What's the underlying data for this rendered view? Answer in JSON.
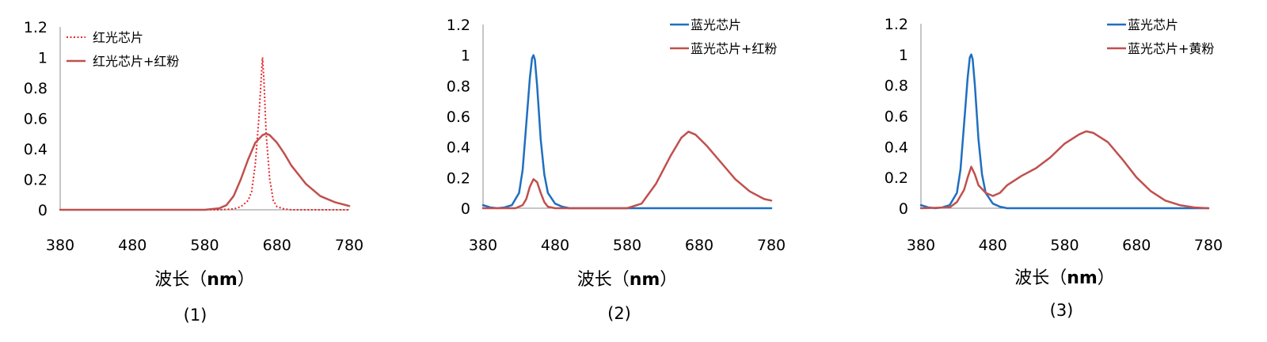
{
  "chart_data": [
    {
      "type": "line",
      "panel_label": "(1)",
      "xlabel_main": "波长（",
      "xlabel_unit": "nm",
      "xlabel_end": "）",
      "xlim": [
        380,
        780
      ],
      "ylim": [
        0,
        1.2
      ],
      "x_ticks": [
        "380",
        "480",
        "580",
        "680",
        "780"
      ],
      "y_ticks": [
        "0",
        "0.2",
        "0.4",
        "0.6",
        "0.8",
        "1",
        "1.2"
      ],
      "legend_position": "top-left",
      "series": [
        {
          "name": "红光芯片",
          "color": "#e8262b",
          "style": "dotted",
          "x": [
            380,
            600,
            620,
            630,
            640,
            645,
            650,
            655,
            658,
            660,
            662,
            665,
            670,
            675,
            680,
            690,
            700,
            720,
            780
          ],
          "y": [
            0,
            0,
            0.005,
            0.02,
            0.06,
            0.12,
            0.3,
            0.6,
            0.85,
            1.0,
            0.85,
            0.5,
            0.2,
            0.06,
            0.02,
            0.005,
            0,
            0,
            0
          ]
        },
        {
          "name": "红光芯片+红粉",
          "color": "#c0504d",
          "style": "solid",
          "x": [
            380,
            580,
            600,
            610,
            620,
            630,
            640,
            650,
            660,
            665,
            670,
            680,
            690,
            700,
            720,
            740,
            760,
            780
          ],
          "y": [
            0,
            0,
            0.01,
            0.03,
            0.09,
            0.2,
            0.33,
            0.44,
            0.49,
            0.5,
            0.49,
            0.44,
            0.37,
            0.29,
            0.17,
            0.09,
            0.05,
            0.025
          ]
        }
      ]
    },
    {
      "type": "line",
      "panel_label": "(2)",
      "xlabel_main": "波长（",
      "xlabel_unit": "nm",
      "xlabel_end": "）",
      "xlim": [
        380,
        780
      ],
      "ylim": [
        0,
        1.2
      ],
      "x_ticks": [
        "380",
        "480",
        "580",
        "680",
        "780"
      ],
      "y_ticks": [
        "0",
        "0.2",
        "0.4",
        "0.6",
        "0.8",
        "1",
        "1.2"
      ],
      "legend_position": "top-right",
      "series": [
        {
          "name": "蓝光芯片",
          "color": "#1f6fbf",
          "style": "solid",
          "x": [
            380,
            390,
            400,
            410,
            420,
            430,
            435,
            440,
            445,
            448,
            450,
            452,
            455,
            460,
            465,
            470,
            480,
            490,
            500,
            780
          ],
          "y": [
            0.02,
            0.005,
            0,
            0.005,
            0.02,
            0.1,
            0.25,
            0.55,
            0.85,
            0.98,
            1.0,
            0.97,
            0.8,
            0.45,
            0.22,
            0.1,
            0.03,
            0.01,
            0,
            0
          ]
        },
        {
          "name": "蓝光芯片+红粉",
          "color": "#c0504d",
          "style": "solid",
          "x": [
            380,
            425,
            435,
            440,
            445,
            450,
            455,
            460,
            465,
            470,
            480,
            580,
            600,
            620,
            640,
            655,
            665,
            675,
            690,
            710,
            730,
            750,
            770,
            780
          ],
          "y": [
            0,
            0,
            0.02,
            0.06,
            0.14,
            0.19,
            0.17,
            0.1,
            0.04,
            0.01,
            0,
            0,
            0.03,
            0.16,
            0.34,
            0.46,
            0.5,
            0.48,
            0.41,
            0.3,
            0.19,
            0.11,
            0.06,
            0.05
          ]
        }
      ]
    },
    {
      "type": "line",
      "panel_label": "(3)",
      "xlabel_main": "波长（",
      "xlabel_unit": "nm",
      "xlabel_end": "）",
      "xlim": [
        380,
        780
      ],
      "ylim": [
        0,
        1.2
      ],
      "x_ticks": [
        "380",
        "480",
        "580",
        "680",
        "780"
      ],
      "y_ticks": [
        "0",
        "0.2",
        "0.4",
        "0.6",
        "0.8",
        "1",
        "1.2"
      ],
      "legend_position": "top-right",
      "series": [
        {
          "name": "蓝光芯片",
          "color": "#1f6fbf",
          "style": "solid",
          "x": [
            380,
            390,
            400,
            410,
            420,
            430,
            435,
            440,
            445,
            448,
            450,
            452,
            455,
            460,
            465,
            470,
            480,
            490,
            500,
            780
          ],
          "y": [
            0.02,
            0.005,
            0,
            0.005,
            0.02,
            0.1,
            0.25,
            0.55,
            0.85,
            0.98,
            1.0,
            0.97,
            0.8,
            0.45,
            0.22,
            0.1,
            0.03,
            0.01,
            0,
            0
          ]
        },
        {
          "name": "蓝光芯片+黄粉",
          "color": "#c0504d",
          "style": "solid",
          "x": [
            380,
            420,
            430,
            440,
            445,
            450,
            455,
            460,
            470,
            480,
            490,
            500,
            520,
            540,
            560,
            580,
            600,
            610,
            620,
            640,
            660,
            680,
            700,
            720,
            740,
            760,
            780
          ],
          "y": [
            0,
            0.005,
            0.04,
            0.12,
            0.2,
            0.27,
            0.22,
            0.15,
            0.1,
            0.08,
            0.1,
            0.15,
            0.21,
            0.26,
            0.33,
            0.42,
            0.48,
            0.5,
            0.49,
            0.43,
            0.32,
            0.2,
            0.11,
            0.05,
            0.02,
            0.005,
            0
          ]
        }
      ]
    }
  ]
}
